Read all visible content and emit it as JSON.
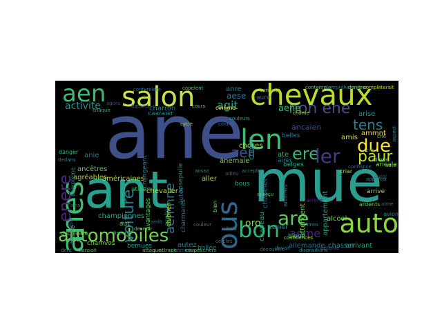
{
  "cloud": {
    "background": "#000000",
    "words": [
      {
        "text": "ane",
        "color": "#3e4f8a"
      },
      {
        "text": "mue",
        "color": "#2a9d8f"
      },
      {
        "text": "ant",
        "color": "#26a18c"
      },
      {
        "text": "chevaux",
        "color": "#b8de29"
      },
      {
        "text": "salon",
        "color": "#c7e34a"
      },
      {
        "text": "aen",
        "color": "#3fbc73"
      },
      {
        "text": "len",
        "color": "#3fbc73"
      },
      {
        "text": "auto",
        "color": "#8bd646"
      },
      {
        "text": "automobiles",
        "color": "#75d054"
      },
      {
        "text": "non ene",
        "color": "#3a538b"
      },
      {
        "text": "anes",
        "color": "#3fbc73"
      },
      {
        "text": "ous",
        "color": "#31688e"
      },
      {
        "text": "bon",
        "color": "#35b779"
      },
      {
        "text": "are",
        "color": "#5ec962"
      },
      {
        "text": "ere",
        "color": "#35b779"
      },
      {
        "text": "ler",
        "color": "#443983"
      },
      {
        "text": "due",
        "color": "#fde725"
      },
      {
        "text": "paur",
        "color": "#c5e021"
      },
      {
        "text": "tens",
        "color": "#26828e"
      },
      {
        "text": "enere",
        "color": "#482878"
      },
      {
        "text": "voiture",
        "color": "#2a788e"
      },
      {
        "text": "activite",
        "color": "#21918c"
      },
      {
        "text": "agit",
        "color": "#22a884"
      },
      {
        "text": "aese",
        "color": "#2c728e"
      },
      {
        "text": "aeil",
        "color": "#3b528b"
      },
      {
        "text": "aemnne",
        "color": "#2c728e"
      },
      {
        "text": "aeme",
        "color": "#482878"
      },
      {
        "text": "oro",
        "color": "#90d743"
      },
      {
        "text": "ancêtres",
        "color": "#5ec962"
      },
      {
        "text": "agréables",
        "color": "#addc30"
      },
      {
        "text": "américaines",
        "color": "#addc30"
      },
      {
        "text": "anie",
        "color": "#2a788e"
      },
      {
        "text": "anemaie",
        "color": "#7ad151"
      },
      {
        "text": "aller",
        "color": "#a0da39"
      },
      {
        "text": "ancaien",
        "color": "#3b528b"
      },
      {
        "text": "ammnt",
        "color": "#fde725"
      },
      {
        "text": "amis",
        "color": "#d2e21b"
      },
      {
        "text": "arise",
        "color": "#21918c"
      },
      {
        "text": "alcool",
        "color": "#7ad151"
      },
      {
        "text": "appartement",
        "color": "#20a486"
      },
      {
        "text": "attendent",
        "color": "#6ece58"
      },
      {
        "text": "arrivant",
        "color": "#20a486"
      },
      {
        "text": "chasser",
        "color": "#26828e"
      },
      {
        "text": "allemande",
        "color": "#31688e"
      },
      {
        "text": "championnes",
        "color": "#22a884"
      },
      {
        "text": "changeant",
        "color": "#26828e"
      },
      {
        "text": "chapeau",
        "color": "#20a486"
      },
      {
        "text": "chapelet",
        "color": "#2a788e"
      },
      {
        "text": "chevalier",
        "color": "#b5de2b"
      },
      {
        "text": "charron",
        "color": "#26828e"
      },
      {
        "text": "choses",
        "color": "#addc30"
      },
      {
        "text": "choisir",
        "color": "#1fa188"
      },
      {
        "text": "cinéma",
        "color": "#fde725"
      },
      {
        "text": "chamvos",
        "color": "#7ad151"
      },
      {
        "text": "bemues",
        "color": "#21918c"
      },
      {
        "text": "bollée",
        "color": "#26828e"
      },
      {
        "text": "autez",
        "color": "#2a788e"
      },
      {
        "text": "amée",
        "color": "#6ece58"
      },
      {
        "text": "avion",
        "color": "#21918c"
      },
      {
        "text": "blanc",
        "color": "#25ab82"
      },
      {
        "text": "belges",
        "color": "#22a884"
      },
      {
        "text": "belles",
        "color": "#2c728e"
      },
      {
        "text": "airer",
        "color": "#2a788e"
      },
      {
        "text": "amnies",
        "color": "#31688e"
      },
      {
        "text": "arieale",
        "color": "#7ad151"
      },
      {
        "text": "ate",
        "color": "#35b779"
      },
      {
        "text": "aene",
        "color": "#3fbc73"
      },
      {
        "text": "anre",
        "color": "#26828e"
      },
      {
        "text": "aure",
        "color": "#2c728e"
      },
      {
        "text": "ansepuile",
        "color": "#21918c"
      },
      {
        "text": "arebie",
        "color": "#26828e"
      },
      {
        "text": "bous",
        "color": "#20a486"
      },
      {
        "text": "autos",
        "color": "#2c728e"
      },
      {
        "text": "atiaen",
        "color": "#3fbc73"
      },
      {
        "text": "aut",
        "color": "#5ec962"
      },
      {
        "text": "arrive",
        "color": "#addc30"
      },
      {
        "text": "cenier",
        "color": "#26828e"
      },
      {
        "text": "bompleine",
        "color": "#26828e"
      },
      {
        "text": "aupoudre",
        "color": "#3b528b"
      },
      {
        "text": "deculeare",
        "color": "#5ec962"
      },
      {
        "text": "avantages",
        "color": "#5ec962"
      },
      {
        "text": "clubnen",
        "color": "#addc30"
      },
      {
        "text": "charmants",
        "color": "#2a788e"
      },
      {
        "text": "bien",
        "color": "#6ece58"
      },
      {
        "text": "caaraier",
        "color": "#26828e"
      },
      {
        "text": "alrere",
        "color": "#482878"
      },
      {
        "text": "copelent",
        "color": "#5ec962"
      },
      {
        "text": "contempler",
        "color": "#5ec962"
      },
      {
        "text": "compréhensive",
        "color": "#2a788e"
      },
      {
        "text": "denitrer",
        "color": "#5ec962"
      },
      {
        "text": "complèterait",
        "color": "#b5de2b"
      },
      {
        "text": "conterelere",
        "color": "#2c728e"
      },
      {
        "text": "couleurs",
        "color": "#20a486"
      },
      {
        "text": "coloré",
        "color": "#2a788e"
      },
      {
        "text": "curiosité",
        "color": "#addc30"
      },
      {
        "text": "chôme",
        "color": "#addc30"
      },
      {
        "text": "confiance",
        "color": "#2c728e"
      },
      {
        "text": "confidences",
        "color": "#b5de2b"
      },
      {
        "text": "cercles",
        "color": "#2a788e"
      },
      {
        "text": "cycle",
        "color": "#addc30"
      },
      {
        "text": "danger",
        "color": "#35b779"
      },
      {
        "text": "dedans",
        "color": "#2a788e"
      },
      {
        "text": "détente",
        "color": "#31688e"
      },
      {
        "text": "devait",
        "color": "#26828e"
      },
      {
        "text": "découvert",
        "color": "#2c728e"
      },
      {
        "text": "dispositions",
        "color": "#21918c"
      },
      {
        "text": "criar",
        "color": "#addc30"
      },
      {
        "text": "crie",
        "color": "#5ec962"
      },
      {
        "text": "cric",
        "color": "#2a788e"
      },
      {
        "text": "aussi",
        "color": "#3b528b"
      },
      {
        "text": "apporter",
        "color": "#26828e"
      },
      {
        "text": "ardents",
        "color": "#6ece58"
      },
      {
        "text": "admiré",
        "color": "#5ec962"
      },
      {
        "text": "ainsi",
        "color": "#2a788e"
      },
      {
        "text": "dent",
        "color": "#21918c"
      },
      {
        "text": "dansait",
        "color": "#5ec962"
      },
      {
        "text": "attaque",
        "color": "#7ad151"
      },
      {
        "text": "attrape",
        "color": "#5ec962"
      },
      {
        "text": "cheminée",
        "color": "#2a788e"
      },
      {
        "text": "coupes",
        "color": "#5ec962"
      },
      {
        "text": "chers",
        "color": "#35b779"
      },
      {
        "text": "bassins",
        "color": "#2a788e"
      },
      {
        "text": "cours",
        "color": "#5ec962"
      },
      {
        "text": "chaque",
        "color": "#35b779"
      },
      {
        "text": "agora",
        "color": "#3b528b"
      },
      {
        "text": "adieu",
        "color": "#31688e"
      },
      {
        "text": "accepte",
        "color": "#26828e"
      },
      {
        "text": "ansez",
        "color": "#21918c"
      },
      {
        "text": "aime",
        "color": "#2a788e"
      },
      {
        "text": "aspect",
        "color": "#26828e"
      },
      {
        "text": "auto",
        "color": "#7ad151"
      },
      {
        "text": "aperçu",
        "color": "#5ec962"
      },
      {
        "text": "couleur",
        "color": "#2a788e"
      },
      {
        "text": "devenir",
        "color": "#5ec962"
      },
      {
        "text": "disparu",
        "color": "#35b779"
      },
      {
        "text": "arrêt",
        "color": "#2a788e"
      },
      {
        "text": "bols",
        "color": "#21918c"
      },
      {
        "text": "âmes",
        "color": "#26828e"
      }
    ]
  }
}
